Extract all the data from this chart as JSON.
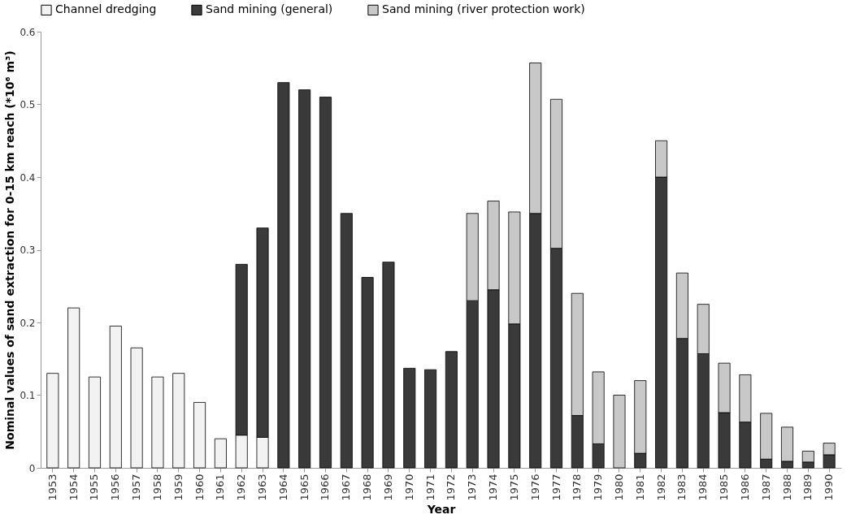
{
  "chart_data": {
    "type": "bar",
    "stacked": true,
    "xlabel": "Year",
    "ylabel": "Nominal values of sand extraction for 0-15 km reach (*10⁶ m³)",
    "categories": [
      "1953",
      "1954",
      "1955",
      "1956",
      "1957",
      "1958",
      "1959",
      "1960",
      "1961",
      "1962",
      "1963",
      "1964",
      "1965",
      "1966",
      "1967",
      "1968",
      "1969",
      "1970",
      "1971",
      "1972",
      "1973",
      "1974",
      "1975",
      "1976",
      "1977",
      "1978",
      "1979",
      "1980",
      "1981",
      "1982",
      "1983",
      "1984",
      "1985",
      "1986",
      "1987",
      "1988",
      "1989",
      "1990"
    ],
    "series": [
      {
        "name": "Channel dredging",
        "color": "#f2f2f2",
        "values": [
          0.13,
          0.22,
          0.125,
          0.195,
          0.165,
          0.125,
          0.13,
          0.09,
          0.04,
          0.045,
          0.042,
          null,
          null,
          null,
          null,
          null,
          null,
          null,
          null,
          null,
          null,
          null,
          null,
          null,
          null,
          null,
          null,
          null,
          null,
          null,
          null,
          null,
          null,
          null,
          null,
          null,
          null,
          null
        ]
      },
      {
        "name": "Sand mining (general)",
        "color": "#3a3a3a",
        "values": [
          null,
          null,
          null,
          null,
          null,
          null,
          null,
          null,
          null,
          0.235,
          0.288,
          0.53,
          0.52,
          0.51,
          0.35,
          0.262,
          0.283,
          0.137,
          0.135,
          0.16,
          0.23,
          0.245,
          0.198,
          0.35,
          0.302,
          0.072,
          0.033,
          null,
          0.02,
          0.4,
          0.178,
          0.157,
          0.076,
          0.063,
          0.012,
          0.009,
          0.008,
          0.018
        ]
      },
      {
        "name": "Sand mining (river protection work)",
        "color": "#c8c8c8",
        "values": [
          null,
          null,
          null,
          null,
          null,
          null,
          null,
          null,
          null,
          null,
          null,
          null,
          null,
          null,
          null,
          null,
          null,
          null,
          null,
          null,
          0.12,
          0.122,
          0.154,
          0.207,
          0.205,
          0.168,
          0.099,
          0.1,
          0.1,
          0.05,
          0.09,
          0.068,
          0.068,
          0.065,
          0.063,
          0.047,
          0.015,
          0.016
        ]
      }
    ],
    "ylim": [
      0,
      0.6
    ],
    "yticks": [
      0,
      0.1,
      0.2,
      0.3,
      0.4,
      0.5,
      0.6
    ],
    "grid": false,
    "legend": "top"
  }
}
